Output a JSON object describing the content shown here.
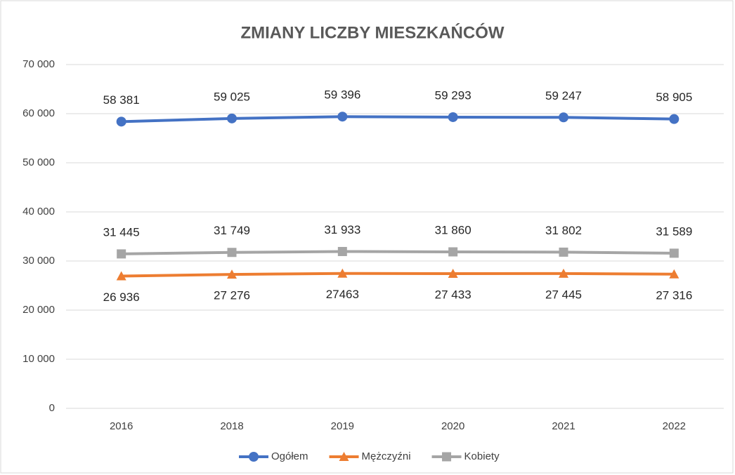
{
  "chart_data": {
    "type": "line",
    "title": "ZMIANY LICZBY MIESZKAŃCÓW",
    "categories": [
      "2016",
      "2018",
      "2019",
      "2020",
      "2021",
      "2022"
    ],
    "series": [
      {
        "name": "Ogółem",
        "color": "#4472c4",
        "marker": "circle",
        "values": [
          58381,
          59025,
          59396,
          59293,
          59247,
          58905
        ],
        "value_labels": [
          "58 381",
          "59 025",
          "59 396",
          "59 293",
          "59 247",
          "58 905"
        ]
      },
      {
        "name": "Mężczyźni",
        "color": "#ed7d31",
        "marker": "triangle",
        "values": [
          26936,
          27276,
          27463,
          27433,
          27445,
          27316
        ],
        "value_labels": [
          "26 936",
          "27 276",
          "27463",
          "27 433",
          "27 445",
          "27 316"
        ]
      },
      {
        "name": "Kobiety",
        "color": "#a5a5a5",
        "marker": "square",
        "values": [
          31445,
          31749,
          31933,
          31860,
          31802,
          31589
        ],
        "value_labels": [
          "31 445",
          "31 749",
          "31 933",
          "31 860",
          "31 802",
          "31 589"
        ]
      }
    ],
    "ylim": [
      0,
      70000
    ],
    "yticks": [
      0,
      {
        "value": 10000,
        "label": "10 000"
      },
      {
        "value": 20000,
        "label": "20 000"
      },
      {
        "value": 30000,
        "label": "30 000"
      },
      {
        "value": 40000,
        "label": "40 000"
      },
      {
        "value": 50000,
        "label": "50 000"
      },
      {
        "value": 60000,
        "label": "60 000"
      },
      {
        "value": 70000,
        "label": "70 000"
      }
    ],
    "grid": true,
    "legend": "bottom"
  }
}
